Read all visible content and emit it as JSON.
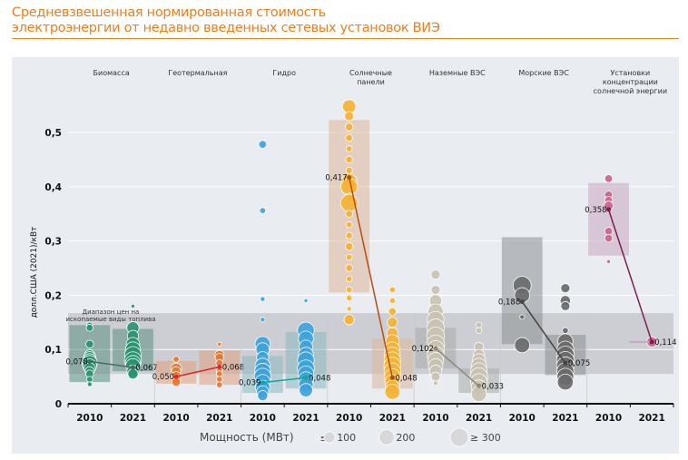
{
  "title": "Средневзвешенная нормированная стоимость электроэнергии от недавно введенных сетевых установок ВИЭ",
  "title_lines": [
    "Средневзвешенная нормированная стоимость",
    "электроэнергии от недавно введенных сетевых установок ВИЭ"
  ],
  "colors": {
    "title": "#f07d1a",
    "panel": "#e9ecf1",
    "fossil_band": "#b4b6ba"
  },
  "chart_data": {
    "type": "scatter",
    "ylabel": "долл.США (2021)/кВт",
    "ylim": [
      0,
      0.5
    ],
    "yticks": [
      "0",
      "0,1",
      "0,2",
      "0,3",
      "0,4",
      "0,5"
    ],
    "ytick_values": [
      0,
      0.1,
      0.2,
      0.3,
      0.4,
      0.5
    ],
    "grid": true,
    "years": [
      "2010",
      "2021"
    ],
    "fossil_band": {
      "label": [
        "Диапазон цен на",
        "ископаемые виды топлива"
      ],
      "range": [
        0.055,
        0.167
      ]
    },
    "categories": [
      {
        "name": [
          "Биомасса"
        ],
        "color": "#2a9470",
        "line": "#3f6e62",
        "box": "#5b8f80",
        "avg": [
          0.078,
          0.067
        ],
        "avg_labels": [
          "0,078",
          "0,067"
        ],
        "range": [
          [
            0.04,
            0.145
          ],
          [
            0.06,
            0.138
          ]
        ],
        "points": [
          [
            [
              0.145,
              20
            ],
            [
              0.14,
              30
            ],
            [
              0.11,
              40
            ],
            [
              0.09,
              80
            ],
            [
              0.085,
              120
            ],
            [
              0.08,
              150
            ],
            [
              0.075,
              200
            ],
            [
              0.07,
              160
            ],
            [
              0.065,
              100
            ],
            [
              0.06,
              60
            ],
            [
              0.055,
              40
            ],
            [
              0.045,
              20
            ],
            [
              0.036,
              10
            ]
          ],
          [
            [
              0.14,
              120
            ],
            [
              0.125,
              100
            ],
            [
              0.11,
              150
            ],
            [
              0.1,
              200
            ],
            [
              0.09,
              250
            ],
            [
              0.08,
              260
            ],
            [
              0.075,
              200
            ],
            [
              0.07,
              180
            ],
            [
              0.06,
              120
            ],
            [
              0.055,
              80
            ],
            [
              0.18,
              5
            ]
          ]
        ]
      },
      {
        "name": [
          "Геотермальная"
        ],
        "color": "#e8782f",
        "line": "#e0242a",
        "box": "#e0a080",
        "avg": [
          0.05,
          0.068
        ],
        "avg_labels": [
          "0,050",
          "0,068"
        ],
        "range": [
          [
            0.037,
            0.079
          ],
          [
            0.035,
            0.098
          ]
        ],
        "points": [
          [
            [
              0.082,
              20
            ],
            [
              0.065,
              90
            ],
            [
              0.06,
              60
            ],
            [
              0.05,
              80
            ],
            [
              0.045,
              60
            ],
            [
              0.04,
              50
            ]
          ],
          [
            [
              0.11,
              5
            ],
            [
              0.09,
              60
            ],
            [
              0.085,
              50
            ],
            [
              0.075,
              30
            ],
            [
              0.065,
              30
            ],
            [
              0.06,
              20
            ],
            [
              0.055,
              20
            ],
            [
              0.045,
              20
            ],
            [
              0.035,
              20
            ]
          ]
        ]
      },
      {
        "name": [
          "Гидро"
        ],
        "color": "#3fa3dc",
        "line": "#1aa39a",
        "box": "#8ab8c0",
        "avg": [
          0.039,
          0.048
        ],
        "avg_labels": [
          "0,039",
          "0,048"
        ],
        "range": [
          [
            0.02,
            0.088
          ],
          [
            0.028,
            0.132
          ]
        ],
        "points": [
          [
            [
              0.478,
              40
            ],
            [
              0.356,
              20
            ],
            [
              0.193,
              10
            ],
            [
              0.155,
              10
            ],
            [
              0.11,
              200
            ],
            [
              0.1,
              150
            ],
            [
              0.085,
              120
            ],
            [
              0.07,
              200
            ],
            [
              0.06,
              220
            ],
            [
              0.05,
              250
            ],
            [
              0.04,
              200
            ],
            [
              0.03,
              180
            ],
            [
              0.022,
              120
            ],
            [
              0.015,
              80
            ]
          ],
          [
            [
              0.19,
              5
            ],
            [
              0.135,
              250
            ],
            [
              0.12,
              200
            ],
            [
              0.105,
              150
            ],
            [
              0.09,
              200
            ],
            [
              0.08,
              250
            ],
            [
              0.065,
              260
            ],
            [
              0.055,
              220
            ],
            [
              0.045,
              200
            ],
            [
              0.035,
              180
            ],
            [
              0.025,
              150
            ]
          ]
        ]
      },
      {
        "name": [
          "Солнечные",
          "панели"
        ],
        "color": "#f5b335",
        "line": "#b54d10",
        "box": "#dfb89a",
        "avg": [
          0.417,
          0.048
        ],
        "avg_labels": [
          "0,417",
          "0,048"
        ],
        "range": [
          [
            0.205,
            0.523
          ],
          [
            0.028,
            0.12
          ]
        ],
        "points": [
          [
            [
              0.548,
              150
            ],
            [
              0.53,
              60
            ],
            [
              0.51,
              40
            ],
            [
              0.49,
              30
            ],
            [
              0.47,
              20
            ],
            [
              0.45,
              30
            ],
            [
              0.43,
              25
            ],
            [
              0.41,
              200
            ],
            [
              0.4,
              250
            ],
            [
              0.38,
              60
            ],
            [
              0.37,
              260
            ],
            [
              0.35,
              30
            ],
            [
              0.33,
              20
            ],
            [
              0.31,
              25
            ],
            [
              0.29,
              40
            ],
            [
              0.27,
              20
            ],
            [
              0.25,
              30
            ],
            [
              0.23,
              20
            ],
            [
              0.21,
              20
            ],
            [
              0.195,
              20
            ],
            [
              0.175,
              10
            ],
            [
              0.155,
              80
            ]
          ],
          [
            [
              0.21,
              20
            ],
            [
              0.19,
              20
            ],
            [
              0.17,
              40
            ],
            [
              0.15,
              80
            ],
            [
              0.13,
              100
            ],
            [
              0.115,
              150
            ],
            [
              0.1,
              200
            ],
            [
              0.09,
              220
            ],
            [
              0.08,
              250
            ],
            [
              0.07,
              260
            ],
            [
              0.06,
              250
            ],
            [
              0.05,
              220
            ],
            [
              0.04,
              200
            ],
            [
              0.03,
              180
            ],
            [
              0.022,
              200
            ]
          ]
        ]
      },
      {
        "name": [
          "Наземные ВЭС"
        ],
        "color": "#c9c3b3",
        "line": "#8a8a80",
        "box": "#a8aaa8",
        "avg": [
          0.102,
          0.033
        ],
        "avg_labels": [
          "0,102",
          "0,033"
        ],
        "range": [
          [
            0.065,
            0.14
          ],
          [
            0.02,
            0.065
          ]
        ],
        "points": [
          [
            [
              0.238,
              60
            ],
            [
              0.21,
              60
            ],
            [
              0.19,
              120
            ],
            [
              0.17,
              200
            ],
            [
              0.155,
              250
            ],
            [
              0.14,
              280
            ],
            [
              0.125,
              290
            ],
            [
              0.11,
              300
            ],
            [
              0.1,
              280
            ],
            [
              0.09,
              260
            ],
            [
              0.08,
              220
            ],
            [
              0.07,
              180
            ],
            [
              0.06,
              120
            ],
            [
              0.05,
              60
            ],
            [
              0.038,
              10
            ]
          ],
          [
            [
              0.145,
              20
            ],
            [
              0.135,
              20
            ],
            [
              0.105,
              60
            ],
            [
              0.09,
              100
            ],
            [
              0.08,
              150
            ],
            [
              0.07,
              200
            ],
            [
              0.06,
              250
            ],
            [
              0.05,
              280
            ],
            [
              0.04,
              250
            ],
            [
              0.03,
              200
            ],
            [
              0.018,
              200
            ]
          ]
        ]
      },
      {
        "name": [
          "Морские ВЭС"
        ],
        "color": "#6b6b6b",
        "line": "#444444",
        "box": "#8d8f92",
        "avg": [
          0.188,
          0.075
        ],
        "avg_labels": [
          "0,188",
          "0,075"
        ],
        "range": [
          [
            0.11,
            0.307
          ],
          [
            0.053,
            0.127
          ]
        ],
        "points": [
          [
            [
              0.218,
              300
            ],
            [
              0.2,
              200
            ],
            [
              0.16,
              10
            ],
            [
              0.108,
              200
            ]
          ],
          [
            [
              0.213,
              60
            ],
            [
              0.19,
              80
            ],
            [
              0.18,
              60
            ],
            [
              0.135,
              20
            ],
            [
              0.115,
              200
            ],
            [
              0.1,
              250
            ],
            [
              0.09,
              280
            ],
            [
              0.08,
              280
            ],
            [
              0.07,
              280
            ],
            [
              0.06,
              260
            ],
            [
              0.05,
              250
            ],
            [
              0.04,
              220
            ]
          ]
        ]
      },
      {
        "name": [
          "Установки",
          "концентрации",
          "солнечной энергии"
        ],
        "color": "#d0638d",
        "line": "#7a1f4d",
        "box": "#c8a8c0",
        "avg": [
          0.358,
          0.114
        ],
        "avg_labels": [
          "0,358",
          "0,114"
        ],
        "range": [
          [
            0.273,
            0.407
          ],
          null
        ],
        "points": [
          [
            [
              0.415,
              40
            ],
            [
              0.385,
              40
            ],
            [
              0.375,
              40
            ],
            [
              0.365,
              60
            ],
            [
              0.318,
              40
            ],
            [
              0.305,
              40
            ],
            [
              0.262,
              5
            ]
          ],
          [
            [
              0.114,
              80
            ]
          ]
        ]
      }
    ],
    "legend": {
      "title": "Мощность (МВт)",
      "items": [
        {
          "label": "≤1",
          "mw": 1
        },
        {
          "label": "100",
          "mw": 100
        },
        {
          "label": "200",
          "mw": 200
        },
        {
          "label": "≥ 300",
          "mw": 300
        }
      ],
      "placement": "bottom"
    }
  }
}
